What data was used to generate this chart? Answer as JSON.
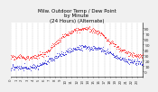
{
  "title": "Milw. Outdoor Temp / Dew Point\nby Minute\n(24 Hours) (Alternate)",
  "title_fontsize": 4.0,
  "bg_color": "#f0f0f0",
  "plot_bg_color": "#ffffff",
  "grid_color": "#aaaaaa",
  "temp_color": "#ff0000",
  "dew_color": "#0000cc",
  "ylim": [
    -10,
    90
  ],
  "yticks": [
    0,
    10,
    20,
    30,
    40,
    50,
    60,
    70,
    80
  ],
  "ylabel_fontsize": 3.2,
  "xlabel_fontsize": 2.8,
  "n_minutes": 1440,
  "seed": 7
}
